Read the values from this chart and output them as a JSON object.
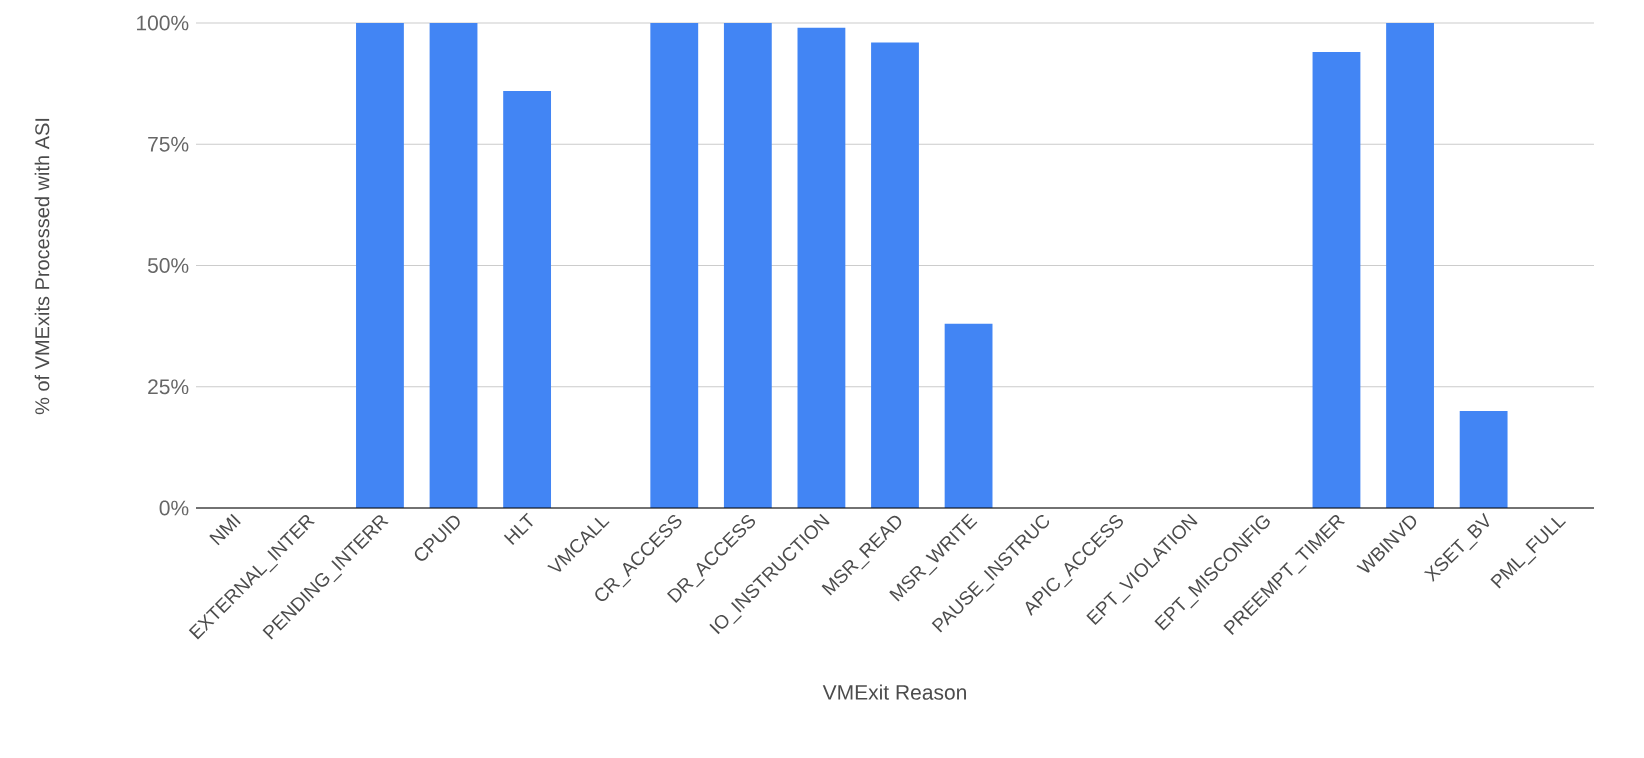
{
  "chart_data": {
    "type": "bar",
    "xlabel": "VMExit Reason",
    "ylabel": "% of VMExits Processed with ASI",
    "categories": [
      "NMI",
      "EXTERNAL_INTER",
      "PENDING_INTERR",
      "CPUID",
      "HLT",
      "VMCALL",
      "CR_ACCESS",
      "DR_ACCESS",
      "IO_INSTRUCTION",
      "MSR_READ",
      "MSR_WRITE",
      "PAUSE_INSTRUC",
      "APIC_ACCESS",
      "EPT_VIOLATION",
      "EPT_MISCONFIG",
      "PREEMPT_TIMER",
      "WBINVD",
      "XSET_BV",
      "PML_FULL"
    ],
    "values": [
      0,
      0,
      100,
      100,
      86,
      0,
      100,
      100,
      99,
      96,
      38,
      0,
      0,
      0,
      0,
      94,
      100,
      20,
      0
    ],
    "color": "#4285f4",
    "ylim": [
      0,
      100
    ],
    "yticks": [
      {
        "value": 0,
        "label": "0%"
      },
      {
        "value": 25,
        "label": "25%"
      },
      {
        "value": 50,
        "label": "50%"
      },
      {
        "value": 75,
        "label": "75%"
      },
      {
        "value": 100,
        "label": "100%"
      }
    ],
    "grid": "y"
  }
}
